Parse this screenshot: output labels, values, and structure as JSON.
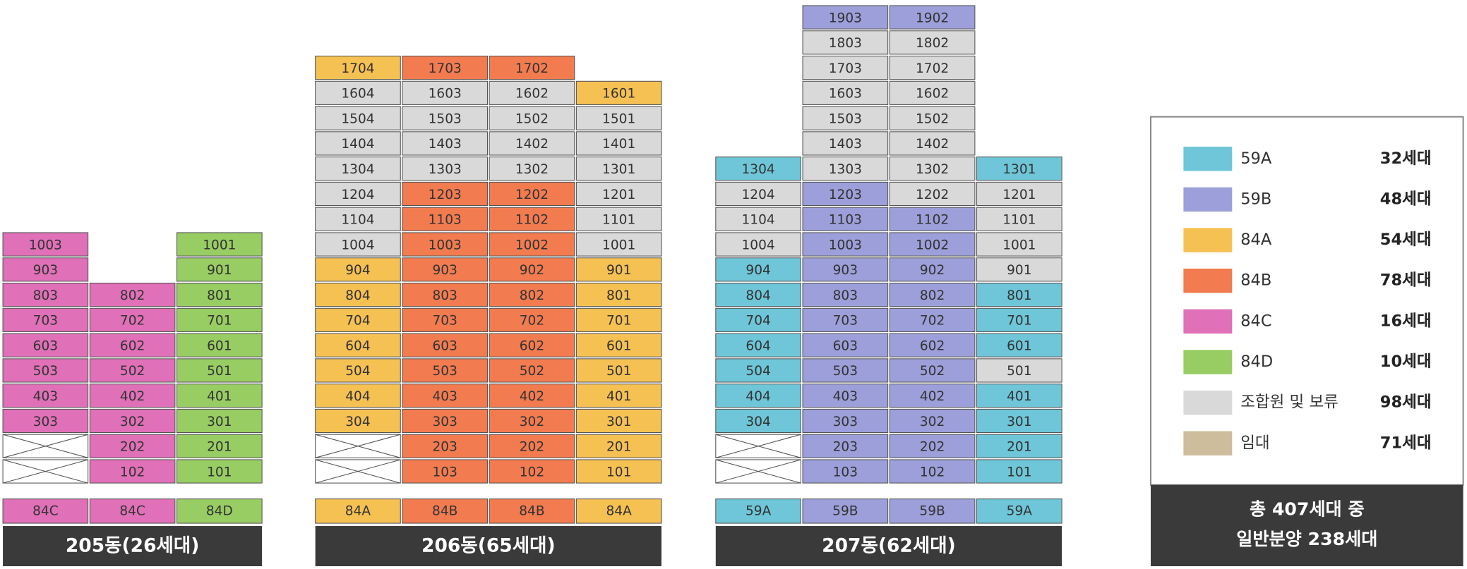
{
  "buildings": [
    {
      "title": "205동(26세대)",
      "columns": [
        {
          "type_label": "84C",
          "units": [
            "1003",
            "903",
            "803",
            "703",
            "603",
            "503",
            "403",
            "303"
          ],
          "types": [
            "84C",
            "84C",
            "84C",
            "84C",
            "84C",
            "84C",
            "84C",
            "84C"
          ]
        },
        {
          "type_label": "84C",
          "units": [
            "802",
            "702",
            "602",
            "502",
            "402",
            "302",
            "202",
            "102"
          ],
          "types": [
            "84C",
            "84C",
            "84C",
            "84C",
            "84C",
            "84C",
            "84C",
            "84C"
          ]
        },
        {
          "type_label": "84D",
          "units": [
            "1001",
            "901",
            "801",
            "701",
            "601",
            "501",
            "401",
            "301",
            "201",
            "101"
          ],
          "types": [
            "84D",
            "84D",
            "84D",
            "84D",
            "84D",
            "84D",
            "84D",
            "84D",
            "84D",
            "84D"
          ]
        }
      ]
    },
    {
      "title": "206동(65세대)",
      "columns": [
        {
          "type_label": "84A",
          "units": [
            "1704",
            "1604",
            "1504",
            "1404",
            "1304",
            "1204",
            "1104",
            "1004",
            "904",
            "804",
            "704",
            "604",
            "504",
            "404",
            "304"
          ],
          "types": [
            "84A",
            "조합원 및 보류",
            "조합원 및 보류",
            "조합원 및 보류",
            "조합원 및 보류",
            "조합원 및 보류",
            "조합원 및 보류",
            "조합원 및 보류",
            "84A",
            "84A",
            "84A",
            "84A",
            "84A",
            "84A",
            "84A"
          ]
        },
        {
          "type_label": "84B",
          "units": [
            "1703",
            "1603",
            "1503",
            "1403",
            "1303",
            "1203",
            "1103",
            "1003",
            "903",
            "803",
            "703",
            "603",
            "503",
            "403",
            "303",
            "203",
            "103"
          ],
          "types": [
            "84B",
            "조합원 및 보류",
            "조합원 및 보류",
            "조합원 및 보류",
            "조합원 및 보류",
            "84B",
            "84B",
            "84B",
            "84B",
            "84B",
            "84B",
            "84B",
            "84B",
            "84B",
            "84B",
            "84B",
            "84B"
          ]
        },
        {
          "type_label": "84B",
          "units": [
            "1702",
            "1602",
            "1502",
            "1402",
            "1302",
            "1202",
            "1102",
            "1002",
            "902",
            "802",
            "702",
            "602",
            "502",
            "402",
            "302",
            "202",
            "102"
          ],
          "types": [
            "84B",
            "조합원 및 보류",
            "조합원 및 보류",
            "조합원 및 보류",
            "조합원 및 보류",
            "84B",
            "84B",
            "84B",
            "84B",
            "84B",
            "84B",
            "84B",
            "84B",
            "84B",
            "84B",
            "84B",
            "84B"
          ]
        },
        {
          "type_label": "84A",
          "units": [
            "1601",
            "1501",
            "1401",
            "1301",
            "1201",
            "1101",
            "1001",
            "901",
            "801",
            "701",
            "601",
            "501",
            "401",
            "301",
            "201",
            "101"
          ],
          "types": [
            "84A",
            "조합원 및 보류",
            "조합원 및 보류",
            "조합원 및 보류",
            "조합원 및 보류",
            "조합원 및 보류",
            "조합원 및 보류",
            "84A",
            "84A",
            "84A",
            "84A",
            "84A",
            "84A",
            "84A",
            "84A",
            "84A"
          ]
        }
      ]
    },
    {
      "title": "207동(62세대)",
      "columns": [
        {
          "type_label": "59A",
          "units": [
            "1304",
            "1204",
            "1104",
            "1004",
            "904",
            "804",
            "704",
            "604",
            "504",
            "404",
            "304"
          ],
          "types": [
            "59A",
            "조합원 및 보류",
            "조합원 및 보류",
            "조합원 및 보류",
            "59A",
            "59A",
            "59A",
            "59A",
            "59A",
            "59A",
            "59A"
          ]
        },
        {
          "type_label": "59B",
          "units": [
            "1903",
            "1803",
            "1703",
            "1603",
            "1503",
            "1403",
            "1303",
            "1203",
            "1103",
            "1003",
            "903",
            "803",
            "703",
            "603",
            "503",
            "403",
            "303",
            "203",
            "103"
          ],
          "types": [
            "59B",
            "조합원 및 보류",
            "조합원 및 보류",
            "조합원 및 보류",
            "조합원 및 보류",
            "조합원 및 보류",
            "조합원 및 보류",
            "59B",
            "59B",
            "59B",
            "59B",
            "59B",
            "59B",
            "59B",
            "59B",
            "59B",
            "59B",
            "59B",
            "59B"
          ]
        },
        {
          "type_label": "59B",
          "units": [
            "1902",
            "1802",
            "1702",
            "1602",
            "1502",
            "1402",
            "1302",
            "1202",
            "1102",
            "1002",
            "902",
            "802",
            "702",
            "602",
            "502",
            "402",
            "302",
            "202",
            "102"
          ],
          "types": [
            "59B",
            "조합원 및 보류",
            "조합원 및 보류",
            "조합원 및 보류",
            "조합원 및 보류",
            "조합원 및 보류",
            "조합원 및 보류",
            "조합원 및 보류",
            "59B",
            "59B",
            "59B",
            "59B",
            "59B",
            "59B",
            "59B",
            "59B",
            "59B",
            "59B",
            "59B"
          ]
        },
        {
          "type_label": "59A",
          "units": [
            "1301",
            "1201",
            "1101",
            "1001",
            "901",
            "801",
            "701",
            "601",
            "501",
            "401",
            "301",
            "201",
            "101"
          ],
          "types": [
            "59A",
            "조합원 및 보류",
            "조합원 및 보류",
            "조합원 및 보류",
            "조합원 및 보류",
            "59A",
            "59A",
            "59A",
            "조합원 및 보류",
            "59A",
            "59A",
            "59A",
            "59A"
          ]
        }
      ]
    }
  ],
  "legend": {
    "items": [
      {
        "label": "59A",
        "count": "32세대",
        "color": "#6ec6d8"
      },
      {
        "label": "59B",
        "count": "48세대",
        "color": "#9c9fd9"
      },
      {
        "label": "84A",
        "count": "54세대",
        "color": "#f6c153"
      },
      {
        "label": "84B",
        "count": "78세대",
        "color": "#f27b50"
      },
      {
        "label": "84C",
        "count": "16세대",
        "color": "#e070b8"
      },
      {
        "label": "84D",
        "count": "10세대",
        "color": "#98cd63"
      },
      {
        "label": "조합원 및 보류",
        "count": "98세대",
        "color": "#d9d9d9"
      },
      {
        "label": "임대",
        "count": "71세대",
        "color": "#cdbd9d"
      }
    ],
    "total": [
      "총 407세대 중",
      "일반분양 238세대"
    ]
  }
}
